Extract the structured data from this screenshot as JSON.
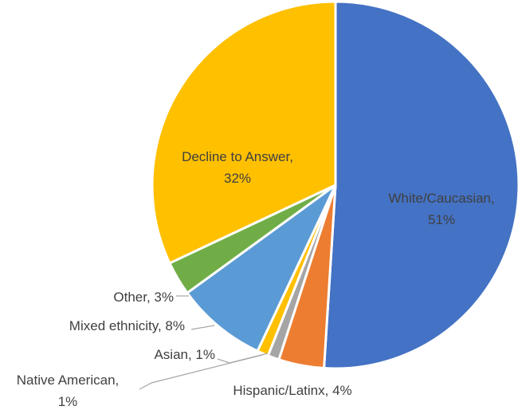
{
  "chart_data": {
    "type": "pie",
    "title": "",
    "slices": [
      {
        "label": "White/Caucasian",
        "value": 51,
        "color": "#4472C4",
        "text_color": "#404040"
      },
      {
        "label": "Hispanic/Latinx",
        "value": 4,
        "color": "#ED7D31",
        "text_color": "#404040"
      },
      {
        "label": "Native American",
        "value": 1,
        "color": "#A5A5A5",
        "text_color": "#404040"
      },
      {
        "label": "Asian",
        "value": 1,
        "color": "#FFC000",
        "text_color": "#404040"
      },
      {
        "label": "Mixed ethnicity",
        "value": 8,
        "color": "#5B9BD5",
        "text_color": "#404040"
      },
      {
        "label": "Other",
        "value": 3,
        "color": "#70AD47",
        "text_color": "#404040"
      },
      {
        "label": "Decline to Answer",
        "value": 32,
        "color": "#FFC000",
        "text_color": "#404040"
      }
    ],
    "data_labels": [
      {
        "lines": [
          "White/Caucasian,",
          "51%"
        ]
      },
      {
        "lines": [
          "Hispanic/Latinx, 4%"
        ]
      },
      {
        "lines": [
          "Native American,",
          "1%"
        ]
      },
      {
        "lines": [
          "Asian, 1%"
        ]
      },
      {
        "lines": [
          "Mixed ethnicity, 8%"
        ]
      },
      {
        "lines": [
          "Other, 3%"
        ]
      },
      {
        "lines": [
          "Decline to Answer,",
          "32%"
        ]
      }
    ],
    "legend": "none",
    "grid": false
  }
}
